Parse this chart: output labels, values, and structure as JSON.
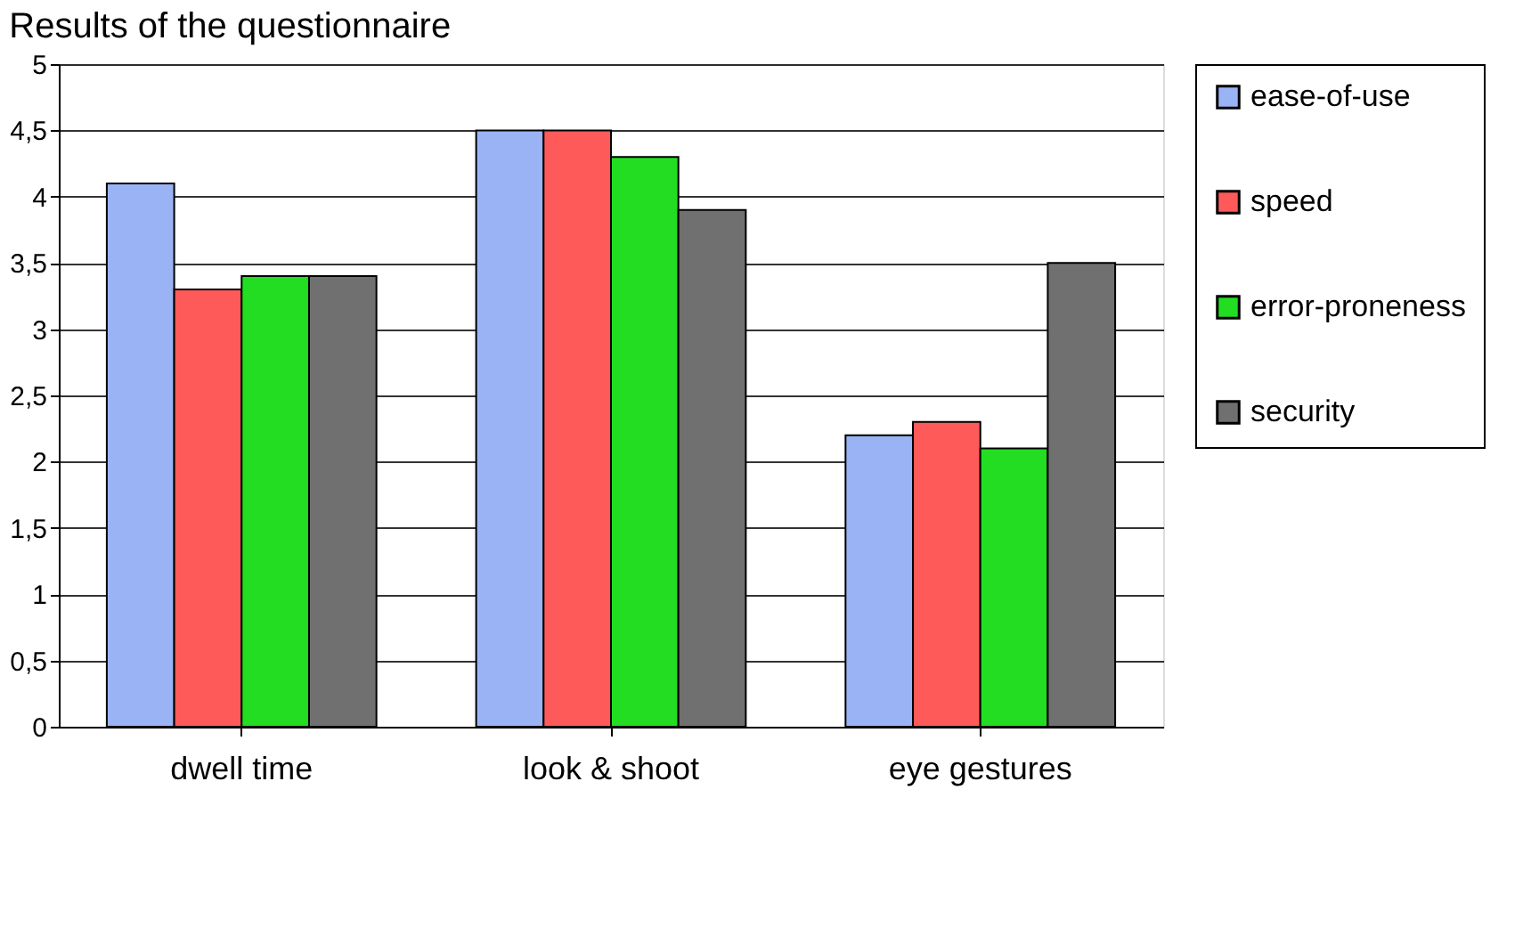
{
  "chart_data": {
    "type": "bar",
    "title": "Results of the questionnaire",
    "categories": [
      "dwell time",
      "look & shoot",
      "eye gestures"
    ],
    "series": [
      {
        "name": "ease-of-use",
        "color": "#99b3f5",
        "values": [
          4.1,
          4.5,
          2.2
        ]
      },
      {
        "name": "speed",
        "color": "#ff5a5a",
        "values": [
          3.3,
          4.5,
          2.3
        ]
      },
      {
        "name": "error-proneness",
        "color": "#22dd22",
        "values": [
          3.4,
          4.3,
          2.1
        ]
      },
      {
        "name": "security",
        "color": "#707070",
        "values": [
          3.4,
          3.9,
          3.5
        ]
      }
    ],
    "ylim": [
      0,
      5
    ],
    "yticks": [
      0,
      {
        "value": 0.5,
        "label": "0,5"
      },
      1,
      {
        "value": 1.5,
        "label": "1,5"
      },
      2,
      {
        "value": 2.5,
        "label": "2,5"
      },
      3,
      {
        "value": 3.5,
        "label": "3,5"
      },
      4,
      {
        "value": 4.5,
        "label": "4,5"
      },
      5
    ],
    "grid": "y",
    "legend": "right"
  }
}
